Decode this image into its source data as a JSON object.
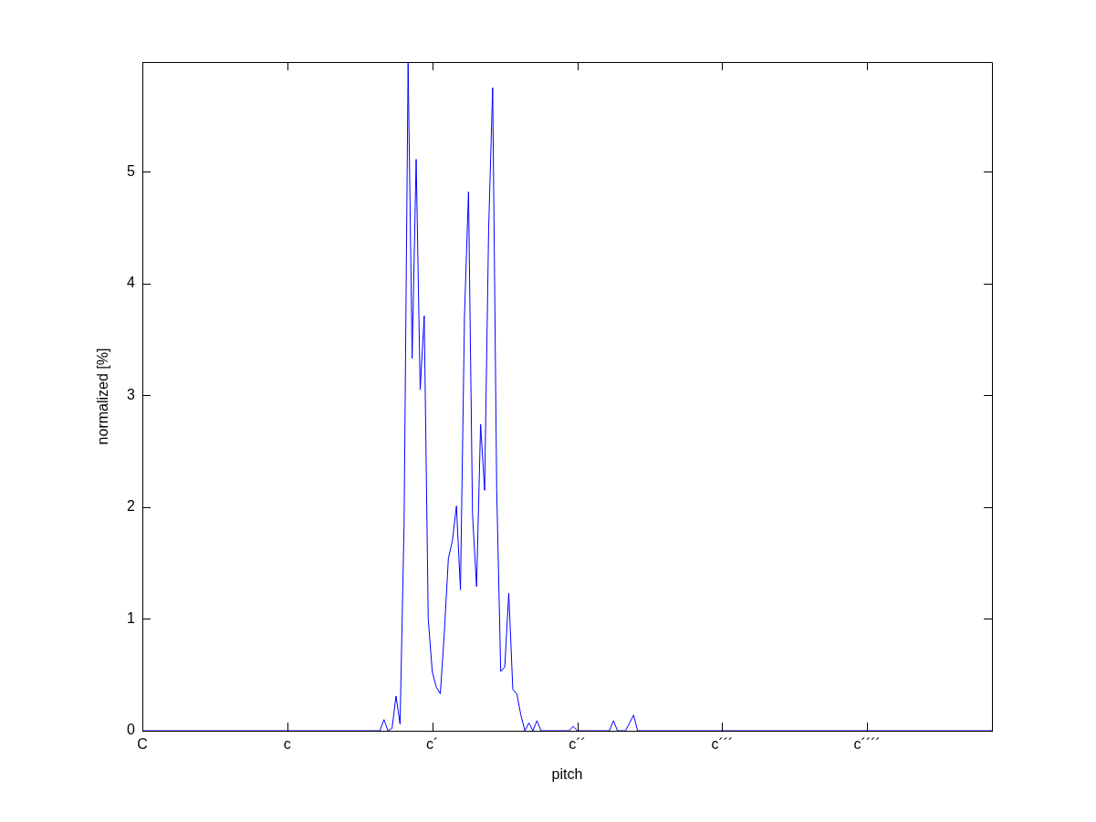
{
  "chart_data": {
    "type": "line",
    "xlabel": "pitch",
    "ylabel": "normalized [%]",
    "categories": [
      "C",
      null,
      null,
      null,
      null,
      null,
      null,
      null,
      null,
      null,
      null,
      null,
      null,
      null,
      null,
      null,
      null,
      null,
      null,
      null,
      null,
      null,
      null,
      null,
      null,
      null,
      null,
      null,
      null,
      null,
      null,
      null,
      null,
      null,
      null,
      null,
      "c",
      null,
      null,
      null,
      null,
      null,
      null,
      null,
      null,
      null,
      null,
      null,
      null,
      null,
      null,
      null,
      null,
      null,
      null,
      null,
      null,
      null,
      null,
      null,
      null,
      null,
      null,
      null,
      null,
      null,
      null,
      null,
      null,
      null,
      null,
      null,
      "c´",
      null,
      null,
      null,
      null,
      null,
      null,
      null,
      null,
      null,
      null,
      null,
      null,
      null,
      null,
      null,
      null,
      null,
      null,
      null,
      null,
      null,
      null,
      null,
      null,
      null,
      null,
      null,
      null,
      null,
      null,
      null,
      null,
      null,
      null,
      null,
      "c´´",
      null,
      null,
      null,
      null,
      null,
      null,
      null,
      null,
      null,
      null,
      null,
      null,
      null,
      null,
      null,
      null,
      null,
      null,
      null,
      null,
      null,
      null,
      null,
      null,
      null,
      null,
      null,
      null,
      null,
      null,
      null,
      null,
      null,
      null,
      null,
      "c´´´",
      null,
      null,
      null,
      null,
      null,
      null,
      null,
      null,
      null,
      null,
      null,
      null,
      null,
      null,
      null,
      null,
      null,
      null,
      null,
      null,
      null,
      null,
      null,
      null,
      null,
      null,
      null,
      null,
      null,
      null,
      null,
      null,
      null,
      null,
      null,
      "c´´´´",
      null,
      null,
      null,
      null,
      null,
      null,
      null,
      null,
      null,
      null,
      null,
      null,
      null,
      null,
      null,
      null,
      null,
      null,
      null,
      null,
      null,
      null,
      null,
      null,
      null,
      null,
      null,
      null,
      null,
      null,
      null
    ],
    "series": [
      {
        "color": "#0000ff",
        "values": [
          0,
          0,
          0,
          0,
          0,
          0,
          0,
          0,
          0,
          0,
          0,
          0,
          0,
          0,
          0,
          0,
          0,
          0,
          0,
          0,
          0,
          0,
          0,
          0,
          0,
          0,
          0,
          0,
          0,
          0,
          0,
          0,
          0,
          0,
          0,
          0,
          0,
          0,
          0,
          0,
          0,
          0,
          0,
          0,
          0,
          0,
          0,
          0,
          0,
          0,
          0,
          0,
          0,
          0,
          0,
          0,
          0,
          0,
          0,
          0,
          0.1,
          0,
          0.02,
          0.31,
          0.06,
          1.85,
          5.97,
          3.33,
          5.11,
          3.05,
          3.71,
          1.0,
          0.53,
          0.39,
          0.33,
          0.88,
          1.54,
          1.7,
          2.01,
          1.26,
          3.71,
          4.82,
          1.93,
          1.29,
          2.74,
          2.15,
          4.49,
          5.75,
          2.16,
          0.53,
          0.57,
          1.23,
          0.37,
          0.33,
          0.14,
          0,
          0.07,
          0,
          0.09,
          0,
          0,
          0,
          0,
          0,
          0,
          0,
          0,
          0.04,
          0,
          0,
          0,
          0,
          0,
          0,
          0,
          0,
          0,
          0.09,
          0,
          0,
          0,
          0.07,
          0.14,
          0,
          0,
          0,
          0,
          0,
          0,
          0,
          0,
          0,
          0,
          0,
          0,
          0,
          0,
          0,
          0,
          0,
          0,
          0,
          0,
          0,
          0,
          0,
          0,
          0,
          0,
          0,
          0,
          0,
          0,
          0,
          0,
          0,
          0,
          0,
          0,
          0,
          0,
          0,
          0,
          0,
          0,
          0,
          0,
          0,
          0,
          0,
          0,
          0,
          0,
          0,
          0,
          0,
          0,
          0,
          0,
          0,
          0,
          0,
          0,
          0,
          0,
          0,
          0,
          0,
          0,
          0,
          0,
          0,
          0,
          0,
          0,
          0,
          0,
          0,
          0,
          0,
          0,
          0,
          0,
          0,
          0,
          0,
          0,
          0,
          0,
          0,
          0,
          0
        ]
      }
    ],
    "ylim": [
      0,
      5.98
    ],
    "yticks": [
      0,
      1,
      2,
      3,
      4,
      5
    ],
    "grid": false,
    "legend": false,
    "marker": "none",
    "line_style": "solid"
  }
}
